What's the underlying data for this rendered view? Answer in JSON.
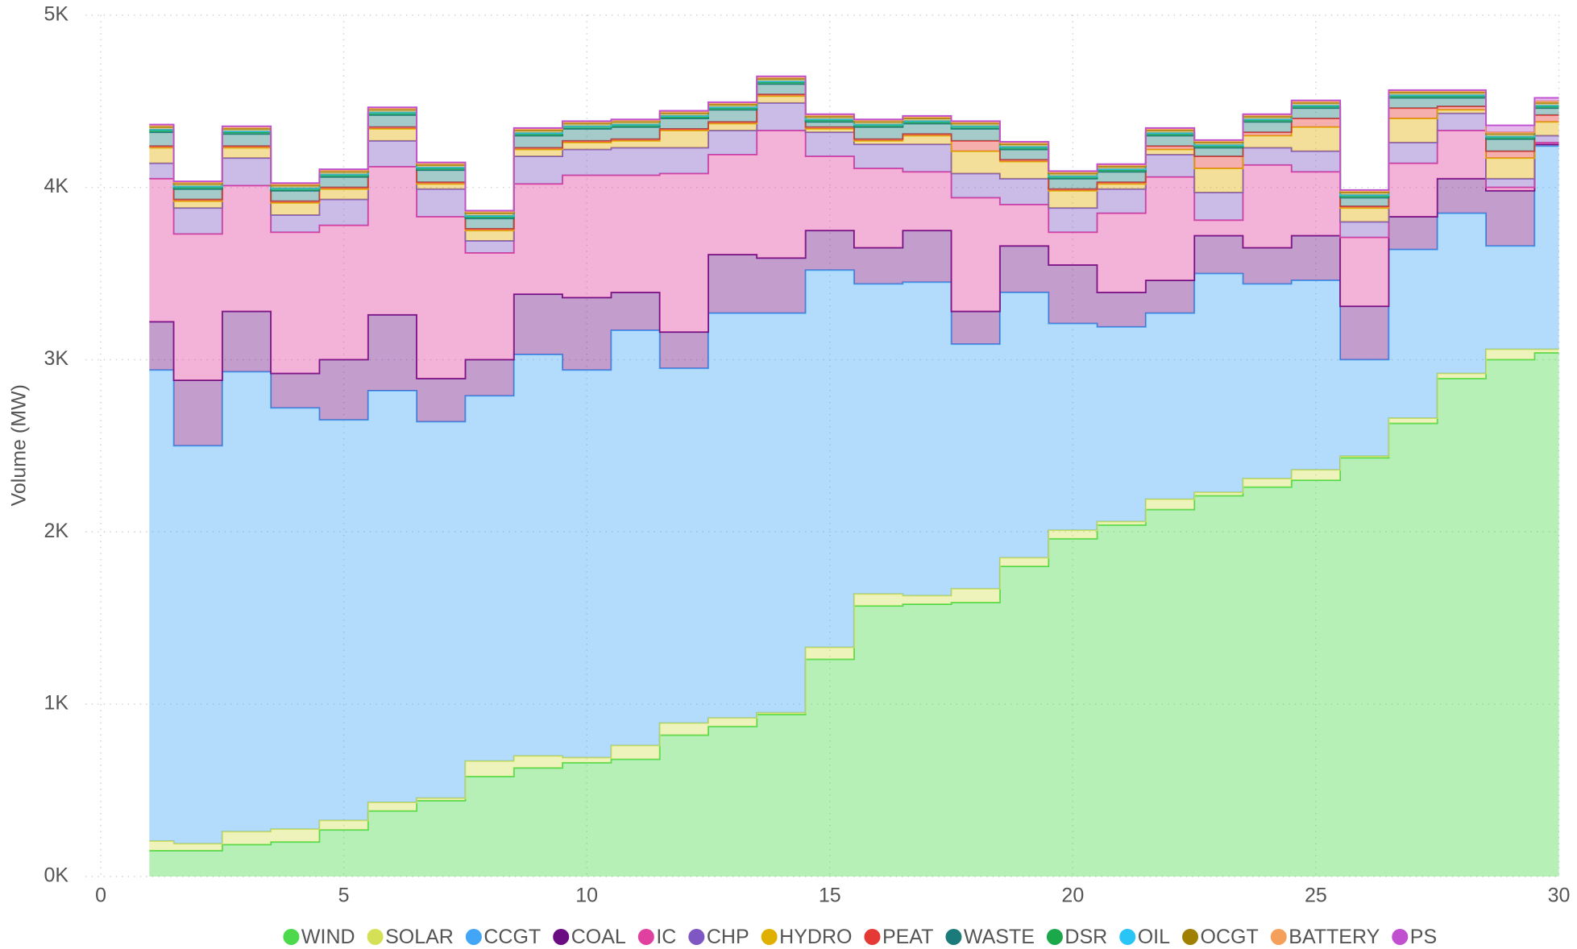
{
  "chart_data": {
    "type": "stacked-step-area",
    "y_label": "Volume (MW)",
    "x": [
      1,
      2,
      3,
      4,
      5,
      6,
      7,
      8,
      9,
      10,
      11,
      12,
      13,
      14,
      15,
      16,
      17,
      18,
      19,
      20,
      21,
      22,
      23,
      24,
      25,
      26,
      27,
      28,
      29,
      30
    ],
    "xlim": [
      0,
      30
    ],
    "xticks": [
      0,
      5,
      10,
      15,
      20,
      25,
      30
    ],
    "ylim": [
      0,
      5000
    ],
    "yticks": [
      {
        "value": 0,
        "label": "0K"
      },
      {
        "value": 1000,
        "label": "1K"
      },
      {
        "value": 2000,
        "label": "2K"
      },
      {
        "value": 3000,
        "label": "3K"
      },
      {
        "value": 4000,
        "label": "4K"
      },
      {
        "value": 5000,
        "label": "5K"
      }
    ],
    "grid": true,
    "legend": "bottom",
    "series": [
      {
        "name": "WIND",
        "color": "#4cd94c",
        "values": [
          150,
          150,
          185,
          200,
          270,
          380,
          440,
          580,
          630,
          660,
          680,
          820,
          870,
          940,
          1260,
          1570,
          1580,
          1590,
          1800,
          1960,
          2040,
          2130,
          2210,
          2260,
          2300,
          2430,
          2630,
          2890,
          3000,
          3040
        ]
      },
      {
        "name": "SOLAR",
        "color": "#d4e157",
        "values": [
          55,
          40,
          75,
          75,
          55,
          50,
          15,
          90,
          70,
          30,
          80,
          70,
          50,
          10,
          70,
          70,
          50,
          80,
          50,
          50,
          20,
          60,
          20,
          50,
          60,
          10,
          30,
          30,
          60,
          20
        ]
      },
      {
        "name": "CCGT",
        "color": "#42a5f5",
        "values": [
          2735,
          2310,
          2670,
          2445,
          2325,
          2390,
          2185,
          2120,
          2330,
          2250,
          2410,
          2060,
          2350,
          2320,
          2190,
          1800,
          1820,
          1420,
          1540,
          1200,
          1130,
          1080,
          1270,
          1130,
          1100,
          560,
          980,
          930,
          600,
          1180
        ]
      },
      {
        "name": "COAL",
        "color": "#6a0d83",
        "values": [
          280,
          380,
          350,
          200,
          350,
          440,
          250,
          210,
          350,
          420,
          220,
          210,
          340,
          320,
          230,
          210,
          300,
          190,
          270,
          340,
          200,
          190,
          220,
          210,
          260,
          310,
          190,
          200,
          320,
          10
        ]
      },
      {
        "name": "IC",
        "color": "#e040a0",
        "values": [
          830,
          850,
          730,
          820,
          780,
          860,
          940,
          620,
          640,
          710,
          680,
          920,
          580,
          740,
          430,
          460,
          340,
          660,
          240,
          190,
          460,
          600,
          90,
          480,
          370,
          400,
          310,
          280,
          20,
          10
        ]
      },
      {
        "name": "CHP",
        "color": "#7e57c2",
        "values": [
          90,
          150,
          160,
          100,
          150,
          150,
          160,
          70,
          160,
          150,
          160,
          150,
          140,
          160,
          140,
          140,
          160,
          140,
          150,
          140,
          140,
          130,
          160,
          100,
          120,
          90,
          120,
          100,
          50,
          40
        ]
      },
      {
        "name": "HYDRO",
        "color": "#e0b000",
        "values": [
          90,
          40,
          60,
          70,
          60,
          70,
          30,
          60,
          40,
          40,
          40,
          100,
          40,
          40,
          20,
          20,
          50,
          130,
          100,
          100,
          30,
          30,
          140,
          70,
          140,
          80,
          140,
          20,
          120,
          80
        ]
      },
      {
        "name": "PEAT",
        "color": "#e53935",
        "values": [
          10,
          10,
          10,
          10,
          10,
          10,
          10,
          10,
          10,
          10,
          10,
          10,
          10,
          10,
          10,
          10,
          10,
          60,
          10,
          10,
          10,
          20,
          70,
          20,
          50,
          10,
          60,
          20,
          40,
          40
        ]
      },
      {
        "name": "WASTE",
        "color": "#1b7a7a",
        "values": [
          80,
          60,
          70,
          60,
          60,
          70,
          70,
          60,
          70,
          70,
          70,
          60,
          70,
          60,
          30,
          70,
          60,
          70,
          60,
          60,
          60,
          60,
          50,
          60,
          60,
          50,
          60,
          50,
          70,
          40
        ]
      },
      {
        "name": "DSR",
        "color": "#1aa84a",
        "values": [
          10,
          10,
          10,
          10,
          10,
          10,
          10,
          10,
          10,
          10,
          10,
          10,
          10,
          10,
          10,
          10,
          10,
          10,
          10,
          10,
          10,
          10,
          10,
          10,
          10,
          10,
          10,
          10,
          10,
          10
        ]
      },
      {
        "name": "OIL",
        "color": "#29c5f6",
        "values": [
          5,
          5,
          5,
          5,
          5,
          5,
          5,
          5,
          5,
          5,
          5,
          5,
          5,
          5,
          5,
          5,
          5,
          5,
          5,
          5,
          5,
          5,
          5,
          5,
          5,
          5,
          5,
          5,
          5,
          5
        ]
      },
      {
        "name": "OCGT",
        "color": "#a08000",
        "values": [
          15,
          15,
          15,
          15,
          15,
          15,
          15,
          15,
          15,
          15,
          15,
          15,
          15,
          15,
          15,
          15,
          15,
          15,
          15,
          15,
          15,
          15,
          15,
          15,
          15,
          15,
          15,
          15,
          15,
          15
        ]
      },
      {
        "name": "BATTERY",
        "color": "#f5a05a",
        "values": [
          10,
          10,
          10,
          10,
          10,
          10,
          10,
          10,
          10,
          10,
          10,
          10,
          10,
          10,
          10,
          10,
          10,
          10,
          10,
          10,
          10,
          10,
          10,
          10,
          10,
          10,
          10,
          10,
          10,
          10
        ]
      },
      {
        "name": "PS",
        "color": "#c050d0",
        "values": [
          5,
          5,
          5,
          5,
          5,
          5,
          5,
          5,
          5,
          5,
          5,
          5,
          5,
          5,
          5,
          5,
          5,
          5,
          5,
          5,
          5,
          5,
          5,
          5,
          5,
          5,
          5,
          5,
          40,
          20
        ]
      }
    ]
  }
}
